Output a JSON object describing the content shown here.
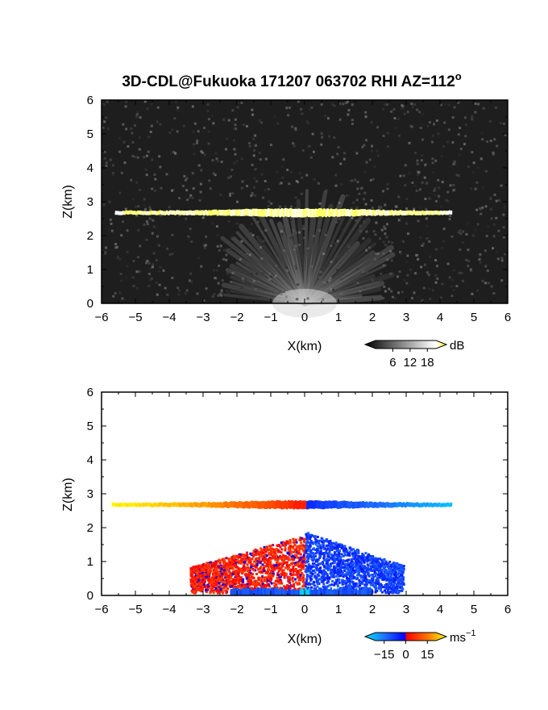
{
  "chart_data": [
    {
      "type": "heatmap",
      "title": "3D-CDL@Fukuoka 171207 063702 RHI AZ=112",
      "title_superscript": "o",
      "xlabel": "X(km)",
      "ylabel": "Z(km)",
      "xlim": [
        -6,
        6
      ],
      "ylim": [
        0,
        6
      ],
      "x_ticks": [
        "−6",
        "−5",
        "−4",
        "−3",
        "−2",
        "−1",
        "0",
        "1",
        "2",
        "3",
        "4",
        "5",
        "6"
      ],
      "y_ticks": [
        "0",
        "1",
        "2",
        "3",
        "4",
        "5",
        "6"
      ],
      "grid": false,
      "colorbar": {
        "unit": "dB",
        "ticks": [
          "6",
          "12",
          "18"
        ],
        "tick_values": [
          6,
          12,
          18
        ],
        "range": [
          0,
          21
        ],
        "colors": [
          "#000000",
          "#ffffff",
          "#ffff00"
        ]
      },
      "features": [
        {
          "label": "cloud-layer",
          "x_range": [
            -5.6,
            4.3
          ],
          "z_range": [
            2.55,
            2.8
          ],
          "value_db": 20
        },
        {
          "label": "ground-clutter-fan",
          "origin": [
            0,
            0
          ],
          "max_range_km": 3.6,
          "value_db": 12
        }
      ],
      "background_value_db": 3
    },
    {
      "type": "heatmap",
      "xlabel": "X(km)",
      "ylabel": "Z(km)",
      "xlim": [
        -6,
        6
      ],
      "ylim": [
        0,
        6
      ],
      "x_ticks": [
        "−6",
        "−5",
        "−4",
        "−3",
        "−2",
        "−1",
        "0",
        "1",
        "2",
        "3",
        "4",
        "5",
        "6"
      ],
      "y_ticks": [
        "0",
        "1",
        "2",
        "3",
        "4",
        "5",
        "6"
      ],
      "grid": false,
      "colorbar": {
        "unit": "ms",
        "unit_superscript": "−1",
        "ticks": [
          "−15",
          "0",
          "15"
        ],
        "tick_values": [
          -15,
          0,
          15
        ],
        "range": [
          -21,
          21
        ],
        "colors": [
          "#00e5ff",
          "#0000ff",
          "#ff0000",
          "#ffff00"
        ]
      },
      "features": [
        {
          "label": "cloud-layer-velocity",
          "x_range": [
            -5.7,
            4.3
          ],
          "z_range": [
            2.55,
            2.8
          ],
          "velocity_at_left": 20,
          "velocity_at_right": -18
        },
        {
          "label": "approaching-echo",
          "x_range": [
            -3.4,
            0
          ],
          "z_range": [
            0.1,
            1.8
          ],
          "velocity": 3
        },
        {
          "label": "receding-echo",
          "x_range": [
            0,
            2.9
          ],
          "z_range": [
            0.1,
            1.9
          ],
          "velocity": -6
        },
        {
          "label": "near-ground-band",
          "x_range": [
            -2.2,
            2.0
          ],
          "z_range": [
            0,
            0.25
          ],
          "velocity": -8
        }
      ]
    }
  ]
}
